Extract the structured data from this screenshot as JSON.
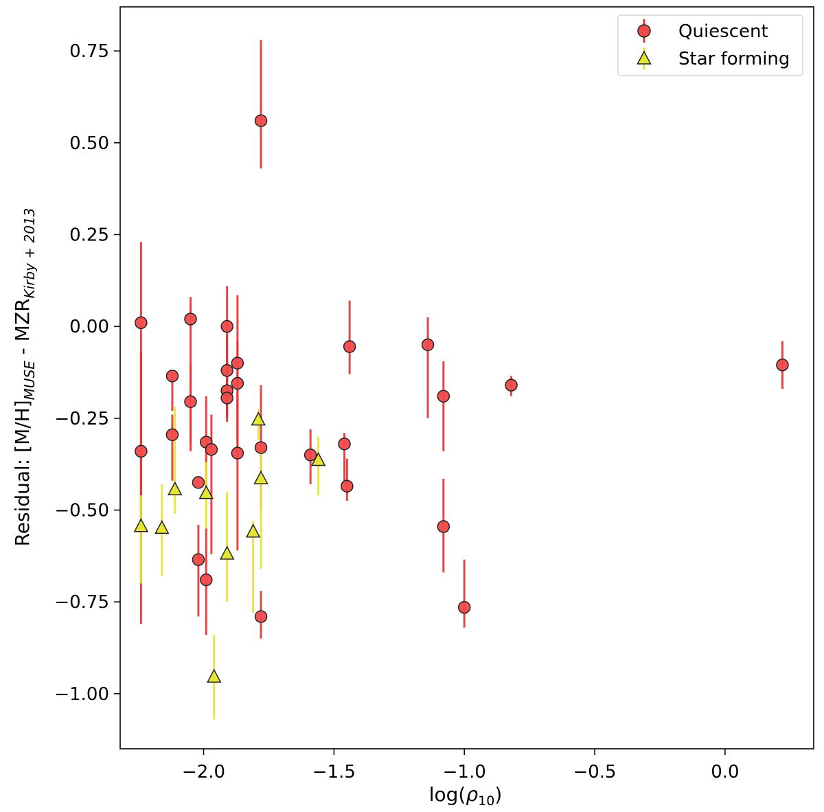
{
  "chart_data": {
    "type": "scatter",
    "xlabel": "log(ρ10)",
    "ylabel": "Residual: [M/H]MUSE - MZRKirby+2013",
    "xlim": [
      -2.32,
      0.34
    ],
    "ylim": [
      -1.15,
      0.87
    ],
    "xticks": [
      -2.0,
      -1.5,
      -1.0,
      -0.5,
      0.0
    ],
    "xtick_labels": [
      "−2.0",
      "−1.5",
      "−1.0",
      "−0.5",
      "0.0"
    ],
    "yticks": [
      -1.0,
      -0.75,
      -0.5,
      -0.25,
      0.0,
      0.25,
      0.5,
      0.75
    ],
    "ytick_labels": [
      "−1.00",
      "−0.75",
      "−0.50",
      "−0.25",
      "0.00",
      "0.25",
      "0.50",
      "0.75"
    ],
    "legend_position": "top-right",
    "series": [
      {
        "name": "Quiescent",
        "marker": "circle",
        "color": "#f04a4a",
        "error_color": "#e03232",
        "points": [
          {
            "x": -2.24,
            "y": 0.01,
            "lo": -0.56,
            "hi": 0.23
          },
          {
            "x": -2.24,
            "y": -0.34,
            "lo": -0.81,
            "hi": -0.07
          },
          {
            "x": -2.12,
            "y": -0.135,
            "lo": -0.23,
            "hi": -0.12
          },
          {
            "x": -2.12,
            "y": -0.295,
            "lo": -0.42,
            "hi": -0.24
          },
          {
            "x": -2.05,
            "y": 0.02,
            "lo": -0.34,
            "hi": 0.08
          },
          {
            "x": -2.05,
            "y": -0.205,
            "lo": -0.32,
            "hi": -0.1
          },
          {
            "x": -2.02,
            "y": -0.425,
            "lo": -0.42,
            "hi": -0.42
          },
          {
            "x": -2.02,
            "y": -0.635,
            "lo": -0.79,
            "hi": -0.54
          },
          {
            "x": -1.99,
            "y": -0.315,
            "lo": -0.44,
            "hi": -0.19
          },
          {
            "x": -1.99,
            "y": -0.69,
            "lo": -0.84,
            "hi": -0.55
          },
          {
            "x": -1.97,
            "y": -0.335,
            "lo": -0.62,
            "hi": -0.24
          },
          {
            "x": -1.91,
            "y": 0.0,
            "lo": -0.19,
            "hi": 0.11
          },
          {
            "x": -1.91,
            "y": -0.12,
            "lo": -0.25,
            "hi": -0.02
          },
          {
            "x": -1.91,
            "y": -0.175,
            "lo": -0.25,
            "hi": -0.1
          },
          {
            "x": -1.91,
            "y": -0.195,
            "lo": -0.26,
            "hi": -0.09
          },
          {
            "x": -1.87,
            "y": -0.1,
            "lo": -0.31,
            "hi": 0.085
          },
          {
            "x": -1.87,
            "y": -0.155,
            "lo": -0.36,
            "hi": -0.04
          },
          {
            "x": -1.87,
            "y": -0.345,
            "lo": -0.61,
            "hi": -0.19
          },
          {
            "x": -1.78,
            "y": 0.56,
            "lo": 0.43,
            "hi": 0.78
          },
          {
            "x": -1.78,
            "y": -0.33,
            "lo": -0.5,
            "hi": -0.16
          },
          {
            "x": -1.78,
            "y": -0.79,
            "lo": -0.85,
            "hi": -0.72
          },
          {
            "x": -1.59,
            "y": -0.35,
            "lo": -0.43,
            "hi": -0.28
          },
          {
            "x": -1.46,
            "y": -0.32,
            "lo": -0.42,
            "hi": -0.29
          },
          {
            "x": -1.45,
            "y": -0.435,
            "lo": -0.475,
            "hi": -0.36
          },
          {
            "x": -1.44,
            "y": -0.055,
            "lo": -0.13,
            "hi": 0.07
          },
          {
            "x": -1.14,
            "y": -0.05,
            "lo": -0.25,
            "hi": 0.025
          },
          {
            "x": -1.08,
            "y": -0.19,
            "lo": -0.34,
            "hi": -0.095
          },
          {
            "x": -1.08,
            "y": -0.545,
            "lo": -0.67,
            "hi": -0.415
          },
          {
            "x": -1.0,
            "y": -0.765,
            "lo": -0.82,
            "hi": -0.635
          },
          {
            "x": -0.82,
            "y": -0.16,
            "lo": -0.19,
            "hi": -0.135
          },
          {
            "x": 0.22,
            "y": -0.105,
            "lo": -0.17,
            "hi": -0.04
          }
        ]
      },
      {
        "name": "Star forming",
        "marker": "triangle",
        "color": "#e6e62e",
        "error_color": "#e6e62e",
        "points": [
          {
            "x": -2.24,
            "y": -0.545,
            "lo": -0.7,
            "hi": -0.46
          },
          {
            "x": -2.16,
            "y": -0.55,
            "lo": -0.68,
            "hi": -0.43
          },
          {
            "x": -2.11,
            "y": -0.445,
            "lo": -0.51,
            "hi": -0.22
          },
          {
            "x": -1.99,
            "y": -0.455,
            "lo": -0.55,
            "hi": -0.37
          },
          {
            "x": -1.96,
            "y": -0.955,
            "lo": -1.07,
            "hi": -0.84
          },
          {
            "x": -1.91,
            "y": -0.62,
            "lo": -0.75,
            "hi": -0.45
          },
          {
            "x": -1.81,
            "y": -0.56,
            "lo": -0.78,
            "hi": -0.53
          },
          {
            "x": -1.79,
            "y": -0.255,
            "lo": -0.31,
            "hi": -0.225
          },
          {
            "x": -1.78,
            "y": -0.415,
            "lo": -0.66,
            "hi": -0.33
          },
          {
            "x": -1.56,
            "y": -0.365,
            "lo": -0.46,
            "hi": -0.3
          }
        ]
      }
    ]
  }
}
